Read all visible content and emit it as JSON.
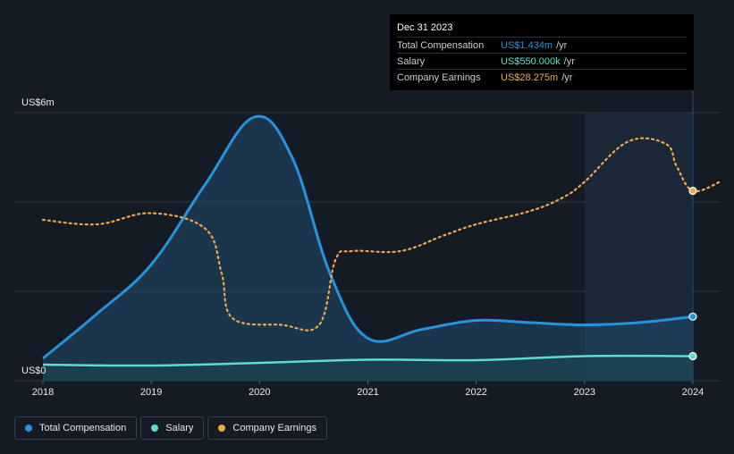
{
  "tooltip": {
    "date": "Dec 31 2023",
    "rows": [
      {
        "label": "Total Compensation",
        "value": "US$1.434m",
        "unit": "/yr",
        "color": "#2394df"
      },
      {
        "label": "Salary",
        "value": "US$550.000k",
        "unit": "/yr",
        "color": "#58e0c8"
      },
      {
        "label": "Company Earnings",
        "value": "US$28.275m",
        "unit": "/yr",
        "color": "#f2a94a"
      }
    ]
  },
  "legend": [
    {
      "label": "Total Compensation",
      "color": "#2394df"
    },
    {
      "label": "Salary",
      "color": "#58e0c8"
    },
    {
      "label": "Company Earnings",
      "color": "#f2a94a"
    }
  ],
  "chart_data": {
    "type": "line",
    "title": "",
    "xlabel": "",
    "ylabel": "",
    "y_axis_labels": {
      "top": "US$6m",
      "bottom": "US$0"
    },
    "ylim": [
      0,
      6
    ],
    "xlim": [
      2018,
      2024.25
    ],
    "x_ticks": [
      "2018",
      "2019",
      "2020",
      "2021",
      "2022",
      "2023",
      "2024"
    ],
    "x_tick_values": [
      2018,
      2019,
      2020,
      2021,
      2022,
      2023,
      2024
    ],
    "highlight_range": [
      2023,
      2024
    ],
    "series": [
      {
        "name": "Total Compensation",
        "color": "#2394df",
        "style": "solid-area",
        "points": [
          [
            2018,
            0.5
          ],
          [
            2018.5,
            1.5
          ],
          [
            2019,
            2.6
          ],
          [
            2019.5,
            4.4
          ],
          [
            2019.95,
            5.9
          ],
          [
            2020.3,
            5.0
          ],
          [
            2020.65,
            2.4
          ],
          [
            2021.0,
            0.95
          ],
          [
            2021.5,
            1.15
          ],
          [
            2022,
            1.35
          ],
          [
            2022.5,
            1.3
          ],
          [
            2023,
            1.25
          ],
          [
            2023.5,
            1.3
          ],
          [
            2024,
            1.434
          ]
        ]
      },
      {
        "name": "Salary",
        "color": "#58e0c8",
        "style": "solid",
        "points": [
          [
            2018,
            0.36
          ],
          [
            2019,
            0.34
          ],
          [
            2020,
            0.4
          ],
          [
            2021,
            0.47
          ],
          [
            2022,
            0.46
          ],
          [
            2023,
            0.55
          ],
          [
            2024,
            0.55
          ]
        ]
      },
      {
        "name": "Company Earnings",
        "color": "#f2a94a",
        "style": "dotted",
        "unit_note": "plotted on its own scale",
        "points": [
          [
            2018,
            3.6
          ],
          [
            2018.5,
            3.5
          ],
          [
            2019,
            3.75
          ],
          [
            2019.5,
            3.4
          ],
          [
            2019.65,
            2.4
          ],
          [
            2019.75,
            1.4
          ],
          [
            2020.2,
            1.25
          ],
          [
            2020.55,
            1.25
          ],
          [
            2020.7,
            2.7
          ],
          [
            2020.85,
            2.9
          ],
          [
            2021.3,
            2.9
          ],
          [
            2021.7,
            3.25
          ],
          [
            2022,
            3.5
          ],
          [
            2022.5,
            3.8
          ],
          [
            2022.8,
            4.1
          ],
          [
            2023,
            4.45
          ],
          [
            2023.4,
            5.35
          ],
          [
            2023.75,
            5.3
          ],
          [
            2023.85,
            4.8
          ],
          [
            2024,
            4.25
          ],
          [
            2024.25,
            4.45
          ]
        ]
      }
    ],
    "markers": [
      {
        "series": "Total Compensation",
        "x": 2024,
        "y": 1.434
      },
      {
        "series": "Salary",
        "x": 2024,
        "y": 0.55
      },
      {
        "series": "Company Earnings",
        "x": 2024,
        "y": 4.25
      }
    ]
  }
}
